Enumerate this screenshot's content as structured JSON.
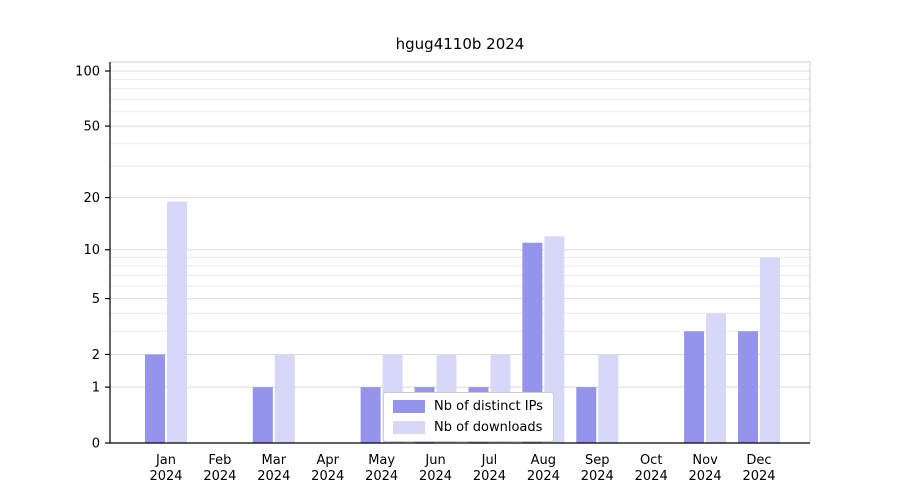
{
  "chart_data": {
    "type": "bar",
    "title": "hgug4110b 2024",
    "categories": [
      "Jan",
      "Feb",
      "Mar",
      "Apr",
      "May",
      "Jun",
      "Jul",
      "Aug",
      "Sep",
      "Oct",
      "Nov",
      "Dec"
    ],
    "x_year": "2024",
    "series": [
      {
        "name": "Nb of distinct IPs",
        "color": "#9494ec",
        "values": [
          2,
          0,
          1,
          0,
          1,
          1,
          1,
          11,
          1,
          0,
          3,
          3
        ]
      },
      {
        "name": "Nb of downloads",
        "color": "#d7d7f8",
        "values": [
          19,
          0,
          2,
          0,
          2,
          2,
          2,
          12,
          2,
          0,
          4,
          9
        ]
      }
    ],
    "yscale": "log1p",
    "ylim": [
      0,
      100
    ],
    "y_ticks": [
      0,
      1,
      2,
      5,
      10,
      20,
      50,
      100
    ],
    "y_minor_gridlines": [
      3,
      4,
      6,
      7,
      8,
      9,
      30,
      40,
      60,
      70,
      80,
      90
    ],
    "grid": true,
    "legend_position": "bottom-center",
    "xlabel": "",
    "ylabel": ""
  }
}
